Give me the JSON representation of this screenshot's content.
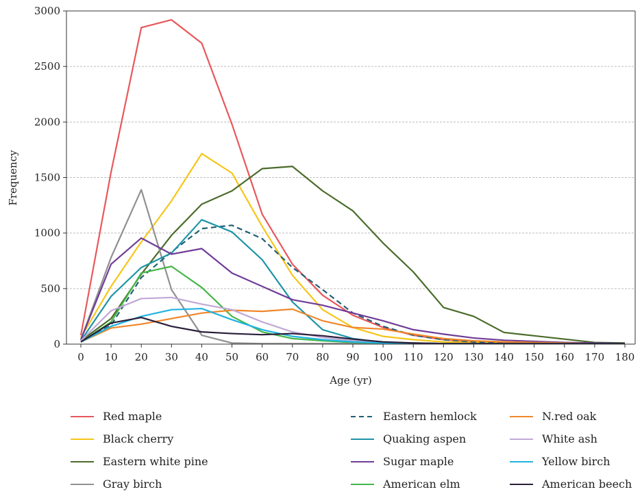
{
  "chart_data": {
    "type": "line",
    "title": "",
    "xlabel": "Age (yr)",
    "ylabel": "Frequency",
    "xlim": [
      0,
      180
    ],
    "ylim": [
      0,
      3000
    ],
    "xticks": [
      "0",
      "10",
      "20",
      "30",
      "40",
      "50",
      "60",
      "70",
      "80",
      "90",
      "100",
      "110",
      "120",
      "130",
      "140",
      "150",
      "160",
      "170",
      "180"
    ],
    "yticks": [
      "0",
      "500",
      "1000",
      "1500",
      "2000",
      "2500",
      "3000"
    ],
    "grid": "horizontal dashed",
    "legend_position": "bottom",
    "x": [
      0,
      10,
      20,
      30,
      40,
      50,
      60,
      70,
      80,
      90,
      100,
      110,
      120,
      130,
      140,
      150,
      160,
      170,
      180
    ],
    "series": [
      {
        "name": "Red maple",
        "color": "#e8575a",
        "dash": false,
        "values": [
          80,
          1550,
          2850,
          2920,
          2710,
          1980,
          1170,
          720,
          440,
          260,
          150,
          80,
          40,
          25,
          15,
          10,
          5,
          5,
          5
        ]
      },
      {
        "name": "Black cherry",
        "color": "#f5c518",
        "dash": false,
        "values": [
          60,
          520,
          920,
          1290,
          1715,
          1540,
          1060,
          620,
          310,
          150,
          70,
          40,
          20,
          15,
          10,
          5,
          5,
          5,
          5
        ]
      },
      {
        "name": "Eastern white pine",
        "color": "#4a6b2a",
        "dash": false,
        "values": [
          30,
          230,
          630,
          980,
          1260,
          1380,
          1580,
          1600,
          1380,
          1200,
          910,
          650,
          330,
          250,
          105,
          75,
          45,
          15,
          10
        ]
      },
      {
        "name": "Gray birch",
        "color": "#909090",
        "dash": false,
        "values": [
          40,
          780,
          1390,
          490,
          80,
          10,
          5,
          5,
          5,
          5,
          5,
          5,
          5,
          5,
          5,
          5,
          5,
          5,
          5
        ]
      },
      {
        "name": "Eastern hemlock",
        "color": "#1f5f73",
        "dash": true,
        "values": [
          20,
          170,
          600,
          830,
          1040,
          1070,
          950,
          690,
          490,
          280,
          160,
          80,
          40,
          20,
          10,
          5,
          5,
          5,
          5
        ]
      },
      {
        "name": "Quaking aspen",
        "color": "#1d94a6",
        "dash": false,
        "values": [
          30,
          430,
          690,
          820,
          1120,
          1010,
          760,
          380,
          130,
          50,
          15,
          10,
          5,
          5,
          5,
          5,
          5,
          5,
          5
        ]
      },
      {
        "name": "Sugar maple",
        "color": "#6f3c97",
        "dash": false,
        "values": [
          40,
          720,
          955,
          810,
          860,
          640,
          520,
          400,
          350,
          280,
          210,
          130,
          90,
          55,
          35,
          25,
          15,
          10,
          5
        ]
      },
      {
        "name": "American elm",
        "color": "#45b649",
        "dash": false,
        "values": [
          20,
          200,
          640,
          700,
          510,
          250,
          110,
          50,
          30,
          15,
          10,
          5,
          5,
          5,
          5,
          5,
          5,
          5,
          5
        ]
      },
      {
        "name": "N.red oak",
        "color": "#f0862a",
        "dash": false,
        "values": [
          20,
          145,
          180,
          230,
          280,
          305,
          295,
          315,
          210,
          150,
          135,
          90,
          50,
          30,
          20,
          15,
          10,
          5,
          5
        ]
      },
      {
        "name": "White ash",
        "color": "#c0a8d6",
        "dash": false,
        "values": [
          30,
          300,
          410,
          420,
          360,
          310,
          200,
          110,
          60,
          30,
          15,
          10,
          5,
          5,
          5,
          5,
          5,
          5,
          5
        ]
      },
      {
        "name": "Yellow birch",
        "color": "#1fb3e0",
        "dash": false,
        "values": [
          20,
          160,
          250,
          310,
          320,
          220,
          130,
          70,
          40,
          20,
          10,
          5,
          5,
          5,
          5,
          5,
          5,
          5,
          5
        ]
      },
      {
        "name": "American beech",
        "color": "#2a1e3a",
        "dash": false,
        "values": [
          20,
          190,
          240,
          160,
          110,
          95,
          85,
          95,
          75,
          45,
          20,
          10,
          5,
          5,
          5,
          5,
          5,
          5,
          5
        ]
      }
    ]
  }
}
